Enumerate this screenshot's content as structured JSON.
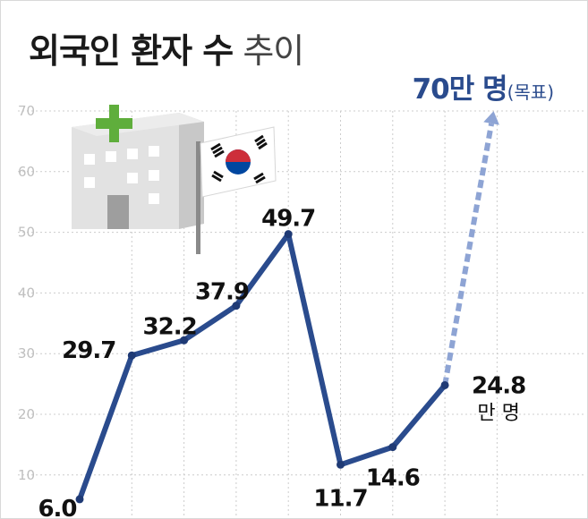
{
  "title": {
    "bold": "외국인 환자 수",
    "light": "추이"
  },
  "goal": {
    "value": 70,
    "label": "70만 명",
    "note": "(목표)"
  },
  "unit_label": "만 명",
  "colors": {
    "line": "#2a4b8d",
    "goal_arrow": "#8ea4d4",
    "grid": "#cccccc",
    "tick": "#bfbfbf",
    "label": "#111111",
    "title_light": "#444444",
    "cross": "#5fae3c",
    "flag_red": "#cd2e3a",
    "flag_blue": "#0047a0"
  },
  "icons": [
    "hospital-icon",
    "korea-flag-icon"
  ],
  "chart_data": {
    "type": "line",
    "title": "외국인 환자 수 추이",
    "xlabel": "",
    "ylabel": "",
    "ylim": [
      0,
      70
    ],
    "yticks": [
      10,
      20,
      30,
      40,
      50,
      60,
      70
    ],
    "grid": true,
    "series": [
      {
        "values": [
          6.0,
          29.7,
          32.2,
          37.9,
          49.7,
          11.7,
          14.6,
          24.8
        ],
        "labels": [
          "6.0",
          "29.7",
          "32.2",
          "37.9",
          "49.7",
          "11.7",
          "14.6",
          "24.8"
        ]
      }
    ],
    "target": {
      "from": 24.8,
      "to": 70
    }
  }
}
